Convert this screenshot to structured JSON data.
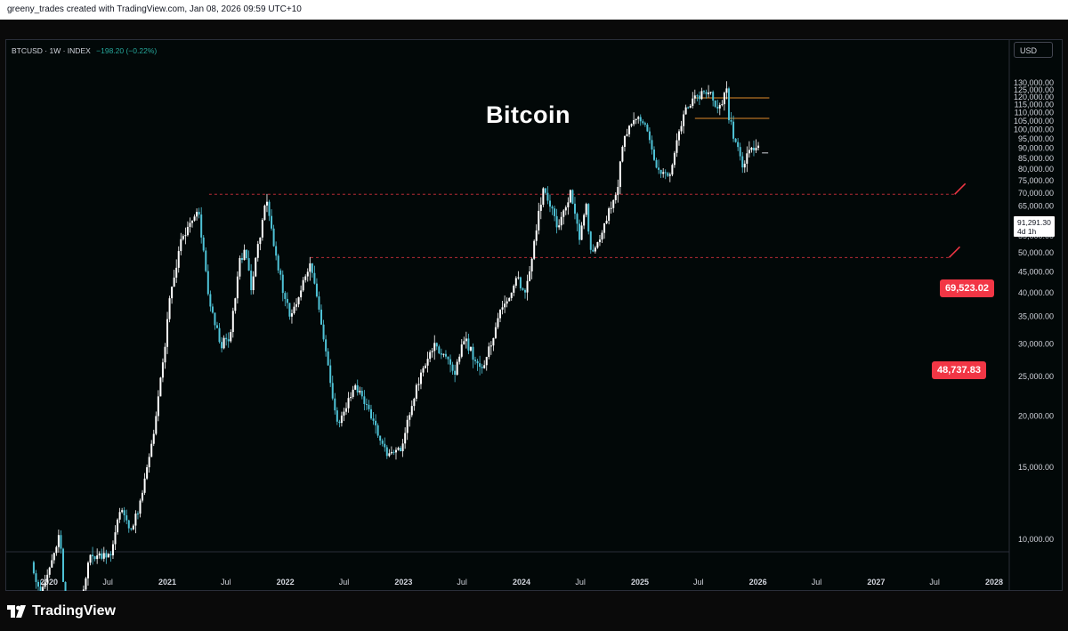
{
  "header": {
    "text": "greeny_trades created with TradingView.com, Jan 08, 2026 09:59 UTC+10"
  },
  "symbol": {
    "name": "BTCUSD · 1W · INDEX",
    "change": "−198.20 (−0.22%)"
  },
  "currency": "USD",
  "current_price": {
    "value": "91,291.30",
    "countdown": "4d 1h"
  },
  "logo": {
    "text": "TradingView"
  },
  "colors": {
    "background": "#020808",
    "candle": "#ffffff",
    "candle_alt": "#4fc3d7",
    "support_line": "#f23645",
    "range_line": "#e08a2a",
    "label_bg": "#f23645",
    "change_text": "#26a69a"
  },
  "chart_data": {
    "type": "candlestick",
    "title": "Bitcoin",
    "symbol": "BTCUSD",
    "interval": "1W",
    "y_scale": "log",
    "ylim": [
      8000,
      131000
    ],
    "y_ticks": [
      "130,000.00",
      "125,000.00",
      "120,000.00",
      "115,000.00",
      "110,000.00",
      "105,000.00",
      "100,000.00",
      "95,000.00",
      "90,000.00",
      "85,000.00",
      "80,000.00",
      "75,000.00",
      "70,000.00",
      "65,000.00",
      "60,000.00",
      "55,000.00",
      "50,000.00",
      "45,000.00",
      "40,000.00",
      "35,000.00",
      "30,000.00",
      "25,000.00",
      "20,000.00",
      "15,000.00",
      "10,000.00"
    ],
    "x_ticks": [
      "2020",
      "Jul",
      "2021",
      "Jul",
      "2022",
      "Jul",
      "2023",
      "Jul",
      "2024",
      "Jul",
      "2025",
      "Jul",
      "2026",
      "Jul",
      "2027",
      "Jul",
      "2028"
    ],
    "horizontal_levels": [
      {
        "value": 69523.02,
        "label": "69,523.02"
      },
      {
        "value": 48737.83,
        "label": "48,737.83"
      }
    ],
    "range_box": {
      "top": 119500,
      "bottom": 106500
    },
    "price_path": [
      [
        "2019-11-15",
        8800
      ],
      [
        "2019-12-15",
        7300
      ],
      [
        "2020-02-10",
        10200
      ],
      [
        "2020-03-13",
        5000
      ],
      [
        "2020-05-10",
        9000
      ],
      [
        "2020-07-20",
        9300
      ],
      [
        "2020-08-17",
        12000
      ],
      [
        "2020-09-20",
        10500
      ],
      [
        "2020-10-20",
        12500
      ],
      [
        "2020-11-30",
        19000
      ],
      [
        "2020-12-28",
        28000
      ],
      [
        "2021-01-15",
        38000
      ],
      [
        "2021-02-20",
        54000
      ],
      [
        "2021-04-14",
        63000
      ],
      [
        "2021-05-20",
        37000
      ],
      [
        "2021-06-22",
        30000
      ],
      [
        "2021-07-20",
        30500
      ],
      [
        "2021-08-20",
        48000
      ],
      [
        "2021-09-06",
        51000
      ],
      [
        "2021-09-25",
        41000
      ],
      [
        "2021-11-08",
        68000
      ],
      [
        "2021-12-10",
        48000
      ],
      [
        "2022-01-22",
        35000
      ],
      [
        "2022-03-28",
        47000
      ],
      [
        "2022-05-10",
        30000
      ],
      [
        "2022-06-18",
        19000
      ],
      [
        "2022-08-14",
        24000
      ],
      [
        "2022-10-10",
        19200
      ],
      [
        "2022-11-15",
        16000
      ],
      [
        "2022-12-30",
        16500
      ],
      [
        "2023-02-20",
        24000
      ],
      [
        "2023-04-14",
        30000
      ],
      [
        "2023-06-15",
        25500
      ],
      [
        "2023-07-14",
        31000
      ],
      [
        "2023-09-11",
        25500
      ],
      [
        "2023-10-25",
        34500
      ],
      [
        "2023-12-25",
        43000
      ],
      [
        "2024-01-23",
        40000
      ],
      [
        "2024-03-14",
        72000
      ],
      [
        "2024-05-01",
        57000
      ],
      [
        "2024-06-07",
        71000
      ],
      [
        "2024-07-05",
        54000
      ],
      [
        "2024-07-29",
        68000
      ],
      [
        "2024-08-05",
        50000
      ],
      [
        "2024-09-06",
        54000
      ],
      [
        "2024-10-29",
        72000
      ],
      [
        "2024-11-22",
        98000
      ],
      [
        "2024-12-17",
        106000
      ],
      [
        "2025-01-20",
        105000
      ],
      [
        "2025-02-28",
        80000
      ],
      [
        "2025-04-07",
        76000
      ],
      [
        "2025-05-22",
        110000
      ],
      [
        "2025-07-14",
        122000
      ],
      [
        "2025-08-14",
        123000
      ],
      [
        "2025-09-01",
        108000
      ],
      [
        "2025-10-06",
        125000
      ],
      [
        "2025-10-10",
        106000
      ],
      [
        "2025-11-21",
        82000
      ],
      [
        "2025-12-15",
        88000
      ],
      [
        "2026-01-05",
        91291.3
      ]
    ]
  }
}
